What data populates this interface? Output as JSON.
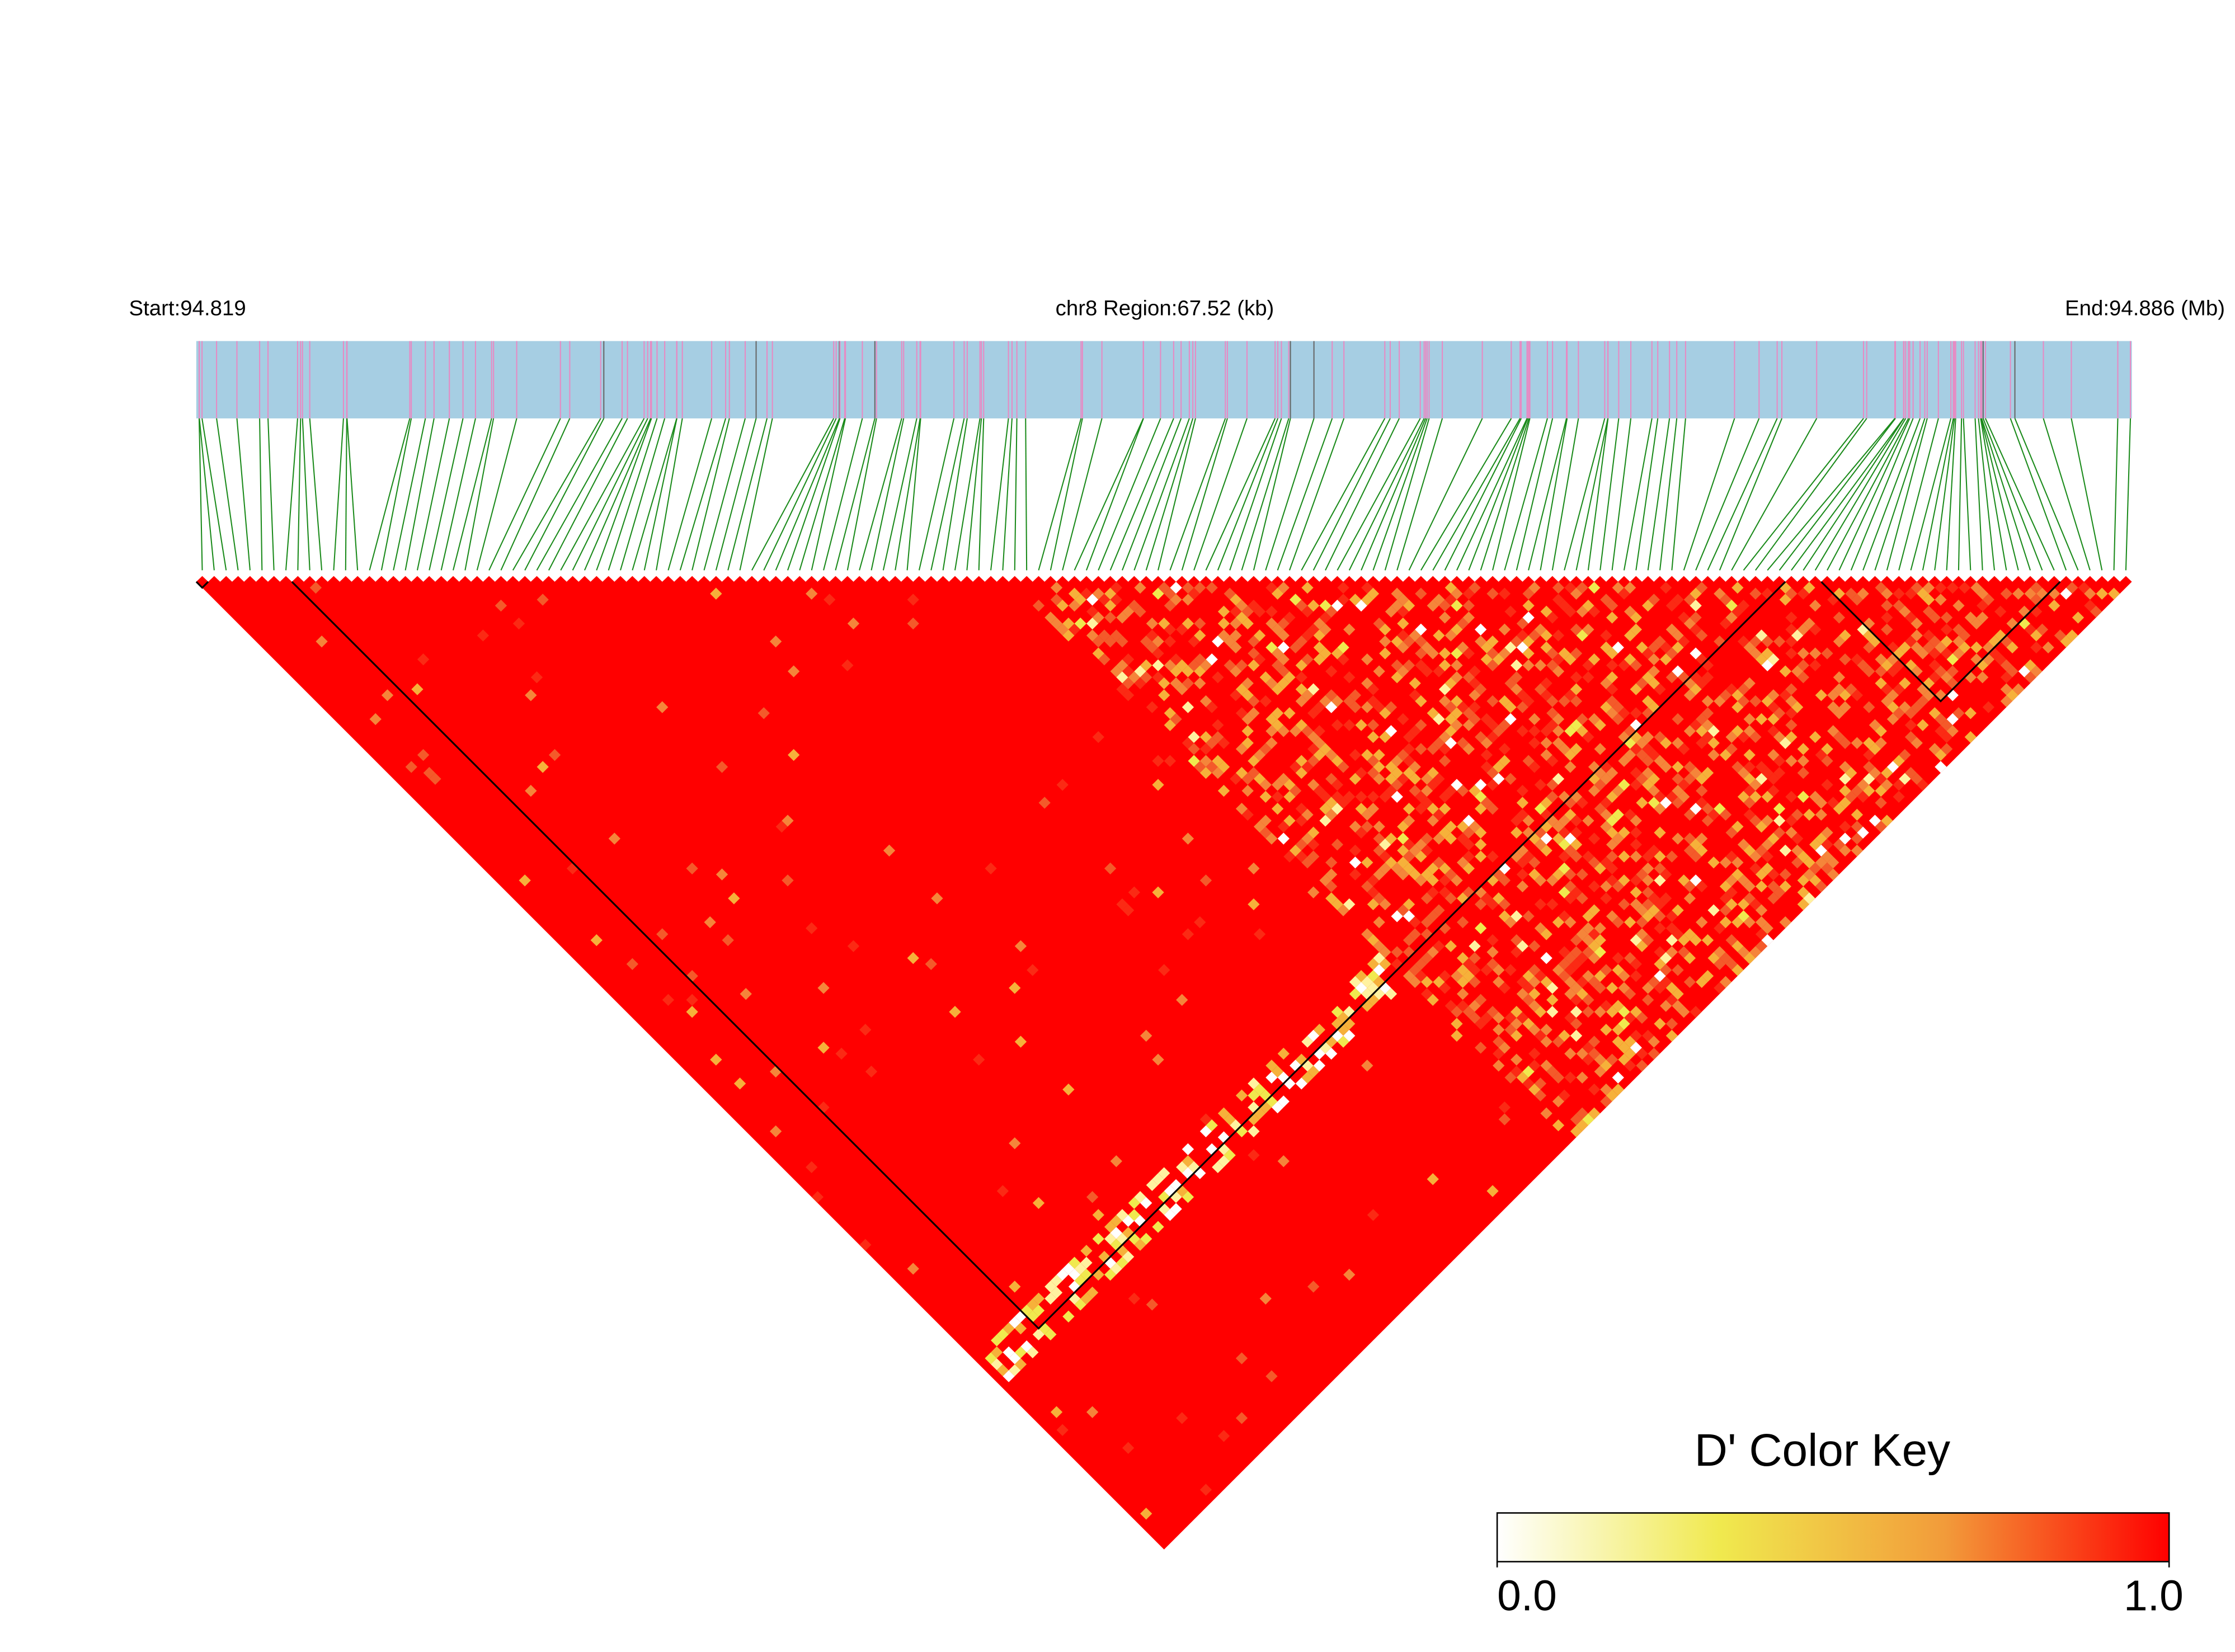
{
  "header": {
    "start": "Start:94.819",
    "region": "chr8 Region:67.52 (kb)",
    "end": "End:94.886 (Mb)"
  },
  "color_key": {
    "title": "D' Color Key",
    "range": [
      0,
      1
    ],
    "ticks": [
      {
        "value": 0,
        "label": "0.0"
      },
      {
        "value": 1,
        "label": "1.0"
      }
    ],
    "colors": [
      "#ffffff",
      "#f0e94e",
      "#f29b3a",
      "#ff0000"
    ]
  }
}
